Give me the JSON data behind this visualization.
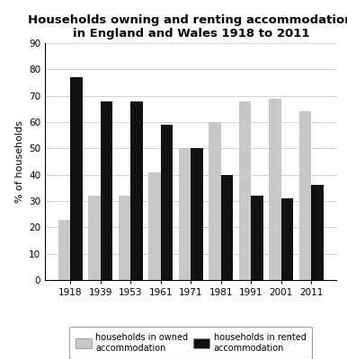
{
  "title_line1": "Households owning and renting accommodation",
  "title_line2": "in England and Wales 1918 to 2011",
  "years": [
    "1918",
    "1939",
    "1953",
    "1961",
    "1971",
    "1981",
    "1991",
    "2001",
    "2011"
  ],
  "owned": [
    23,
    32,
    32,
    41,
    50,
    60,
    68,
    69,
    64
  ],
  "rented": [
    77,
    68,
    68,
    59,
    50,
    40,
    32,
    31,
    36
  ],
  "owned_color": "#c8c8c8",
  "rented_color": "#111111",
  "ylabel": "% of households",
  "ylim": [
    0,
    90
  ],
  "yticks": [
    0,
    10,
    20,
    30,
    40,
    50,
    60,
    70,
    80,
    90
  ],
  "legend_owned": "households in owned\naccommodation",
  "legend_rented": "households in rented\naccommodation",
  "bar_width": 0.4,
  "title_fontsize": 9.5,
  "axis_fontsize": 8,
  "tick_fontsize": 7.5,
  "legend_fontsize": 7
}
